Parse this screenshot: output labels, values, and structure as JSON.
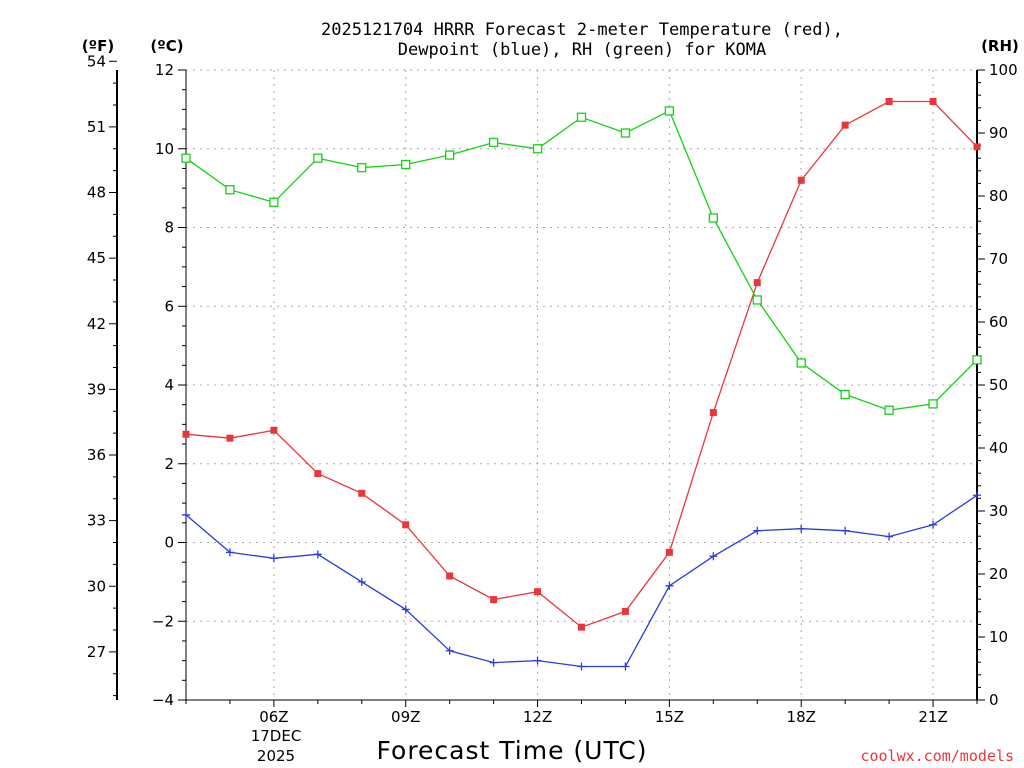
{
  "chart_data": {
    "type": "line",
    "title_line1": "2025121704 HRRR Forecast 2-meter Temperature (red),",
    "title_line2": "Dewpoint (blue), RH (green) for KOMA",
    "xlabel": "Forecast Time (UTC)",
    "date_line1": "17DEC",
    "date_line2": "2025",
    "credit": "coolwx.com/models",
    "unit_f": "(ºF)",
    "unit_c": "(ºC)",
    "unit_rh": "(RH)",
    "x": [
      4,
      5,
      6,
      7,
      8,
      9,
      10,
      11,
      12,
      13,
      14,
      15,
      16,
      17,
      18,
      19,
      20,
      21,
      22
    ],
    "xlim": [
      4,
      22
    ],
    "x_ticks": [
      6,
      9,
      12,
      15,
      18,
      21
    ],
    "x_tick_labels": [
      "06Z",
      "09Z",
      "12Z",
      "15Z",
      "18Z",
      "21Z"
    ],
    "ylim_c": [
      -4,
      12
    ],
    "y_ticks_c": [
      -4,
      -2,
      0,
      2,
      4,
      6,
      8,
      10,
      12
    ],
    "y_tick_labels_c": [
      "−4",
      "−2",
      "0",
      "2",
      "4",
      "6",
      "8",
      "10",
      "12"
    ],
    "y_ticks_f": [
      27,
      30,
      33,
      36,
      39,
      42,
      45,
      48,
      51,
      54
    ],
    "y_tick_labels_f": [
      "27",
      "30",
      "33",
      "36",
      "39",
      "42",
      "45",
      "48",
      "51",
      "54"
    ],
    "ylim_rh": [
      0,
      100
    ],
    "y_ticks_rh": [
      0,
      10,
      20,
      30,
      40,
      50,
      60,
      70,
      80,
      90,
      100
    ],
    "y_tick_labels_rh": [
      "0",
      "10",
      "20",
      "30",
      "40",
      "50",
      "60",
      "70",
      "80",
      "90",
      "100"
    ],
    "grid": true,
    "series": [
      {
        "name": "Temperature",
        "units": "C",
        "axis": "c",
        "color": "#e8363c",
        "marker": "filled-square",
        "values": [
          2.75,
          2.65,
          2.85,
          1.75,
          1.25,
          0.45,
          -0.85,
          -1.45,
          -1.25,
          -2.15,
          -1.75,
          -0.25,
          3.3,
          6.6,
          9.2,
          10.6,
          11.2,
          11.2,
          10.05
        ]
      },
      {
        "name": "Dewpoint",
        "units": "C",
        "axis": "c",
        "color": "#2a3cdc",
        "marker": "plus",
        "values": [
          0.7,
          -0.25,
          -0.4,
          -0.3,
          -1.0,
          -1.7,
          -2.75,
          -3.05,
          -3.0,
          -3.15,
          -3.15,
          -1.1,
          -0.35,
          0.3,
          0.35,
          0.3,
          0.15,
          0.45,
          1.2
        ]
      },
      {
        "name": "RH",
        "units": "%",
        "axis": "rh",
        "color": "#14d214",
        "marker": "open-square",
        "values": [
          86,
          81,
          79,
          86,
          84.5,
          85,
          86.5,
          88.5,
          87.5,
          92.5,
          90,
          93.5,
          76.5,
          63.5,
          53.5,
          48.5,
          46,
          47,
          54
        ]
      }
    ]
  }
}
